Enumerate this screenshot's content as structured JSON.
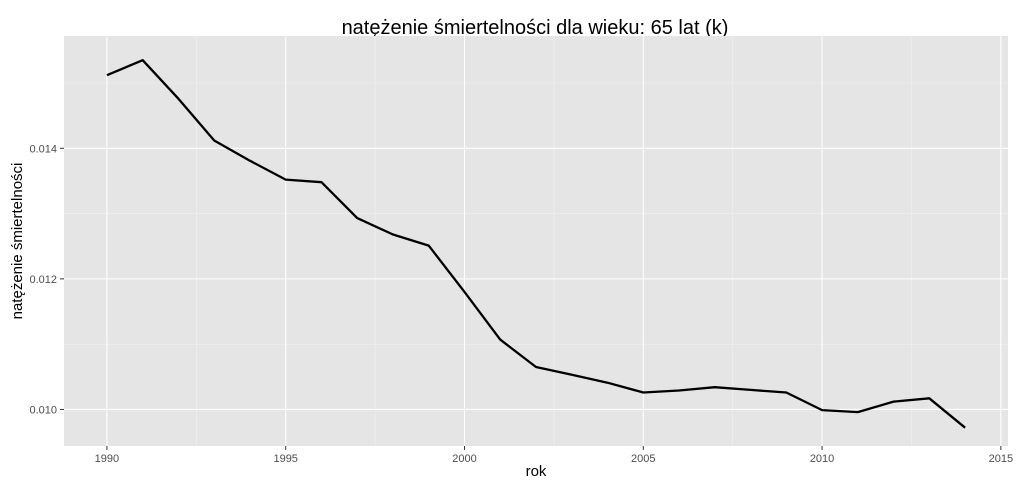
{
  "chart_data": {
    "type": "line",
    "title": "natężenie śmiertelności dla wieku: 65 lat (k)",
    "xlabel": "rok",
    "ylabel": "natężenie śmiertelności",
    "xlim": [
      1988.8,
      2015.2
    ],
    "ylim": [
      0.00944,
      0.01572
    ],
    "x_ticks": [
      1990,
      1995,
      2000,
      2005,
      2010,
      2015
    ],
    "y_ticks": [
      0.01,
      0.012,
      0.014
    ],
    "x_tick_labels": [
      "1990",
      "1995",
      "2000",
      "2005",
      "2010",
      "2015"
    ],
    "y_tick_labels": [
      "0.010",
      "0.012",
      "0.014"
    ],
    "grid": true,
    "background": "#e5e5e5",
    "grid_color": "#ffffff",
    "line_color": "#000000",
    "series": [
      {
        "x": [
          1990,
          1991,
          1992,
          1993,
          1994,
          1995,
          1996,
          1997,
          1998,
          1999,
          2000,
          2001,
          2002,
          2003,
          2004,
          2005,
          2006,
          2007,
          2008,
          2009,
          2010,
          2011,
          2012,
          2013,
          2014
        ],
        "values": [
          0.01512,
          0.01535,
          0.01476,
          0.01412,
          0.01381,
          0.01352,
          0.01348,
          0.01293,
          0.01268,
          0.01251,
          0.0118,
          0.01107,
          0.01065,
          0.01053,
          0.01041,
          0.01026,
          0.01029,
          0.01034,
          0.0103,
          0.01026,
          0.00999,
          0.00996,
          0.01012,
          0.01017,
          0.00972
        ]
      }
    ]
  }
}
